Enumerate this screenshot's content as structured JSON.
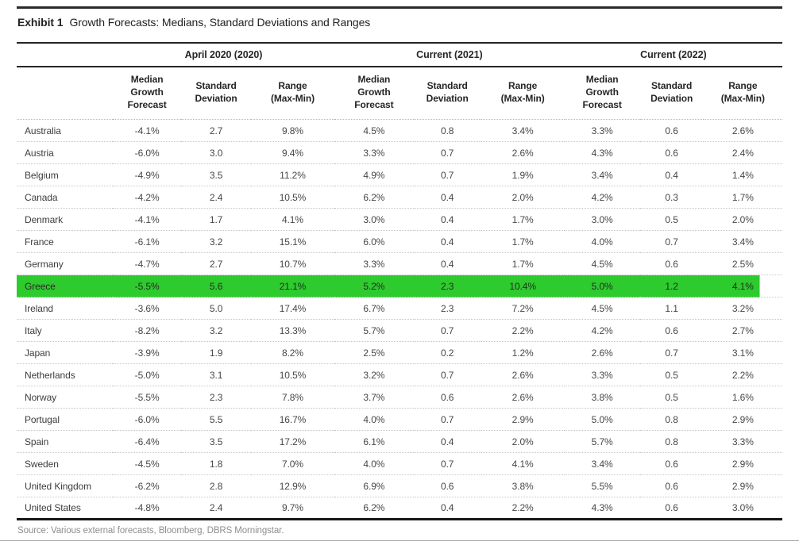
{
  "header": {
    "exhibit_label": "Exhibit 1",
    "title": "Growth Forecasts: Medians, Standard Deviations and Ranges"
  },
  "table": {
    "groups": [
      {
        "label": "April 2020 (2020)"
      },
      {
        "label": "Current (2021)"
      },
      {
        "label": "Current (2022)"
      }
    ],
    "sub_headers": [
      {
        "lines": [
          "Median",
          "Growth",
          "Forecast"
        ]
      },
      {
        "lines": [
          "Standard",
          "Deviation"
        ]
      },
      {
        "lines": [
          "Range",
          "(Max-Min)"
        ]
      }
    ],
    "rows": [
      {
        "country": "Australia",
        "highlight": false,
        "values": [
          "-4.1%",
          "2.7",
          "9.8%",
          "4.5%",
          "0.8",
          "3.4%",
          "3.3%",
          "0.6",
          "2.6%"
        ]
      },
      {
        "country": "Austria",
        "highlight": false,
        "values": [
          "-6.0%",
          "3.0",
          "9.4%",
          "3.3%",
          "0.7",
          "2.6%",
          "4.3%",
          "0.6",
          "2.4%"
        ]
      },
      {
        "country": "Belgium",
        "highlight": false,
        "values": [
          "-4.9%",
          "3.5",
          "11.2%",
          "4.9%",
          "0.7",
          "1.9%",
          "3.4%",
          "0.4",
          "1.4%"
        ]
      },
      {
        "country": "Canada",
        "highlight": false,
        "values": [
          "-4.2%",
          "2.4",
          "10.5%",
          "6.2%",
          "0.4",
          "2.0%",
          "4.2%",
          "0.3",
          "1.7%"
        ]
      },
      {
        "country": "Denmark",
        "highlight": false,
        "values": [
          "-4.1%",
          "1.7",
          "4.1%",
          "3.0%",
          "0.4",
          "1.7%",
          "3.0%",
          "0.5",
          "2.0%"
        ]
      },
      {
        "country": "France",
        "highlight": false,
        "values": [
          "-6.1%",
          "3.2",
          "15.1%",
          "6.0%",
          "0.4",
          "1.7%",
          "4.0%",
          "0.7",
          "3.4%"
        ]
      },
      {
        "country": "Germany",
        "highlight": false,
        "values": [
          "-4.7%",
          "2.7",
          "10.7%",
          "3.3%",
          "0.4",
          "1.7%",
          "4.5%",
          "0.6",
          "2.5%"
        ]
      },
      {
        "country": "Greece",
        "highlight": true,
        "values": [
          "-5.5%",
          "5.6",
          "21.1%",
          "5.2%",
          "2.3",
          "10.4%",
          "5.0%",
          "1.2",
          "4.1%"
        ]
      },
      {
        "country": "Ireland",
        "highlight": false,
        "values": [
          "-3.6%",
          "5.0",
          "17.4%",
          "6.7%",
          "2.3",
          "7.2%",
          "4.5%",
          "1.1",
          "3.2%"
        ]
      },
      {
        "country": "Italy",
        "highlight": false,
        "values": [
          "-8.2%",
          "3.2",
          "13.3%",
          "5.7%",
          "0.7",
          "2.2%",
          "4.2%",
          "0.6",
          "2.7%"
        ]
      },
      {
        "country": "Japan",
        "highlight": false,
        "values": [
          "-3.9%",
          "1.9",
          "8.2%",
          "2.5%",
          "0.2",
          "1.2%",
          "2.6%",
          "0.7",
          "3.1%"
        ]
      },
      {
        "country": "Netherlands",
        "highlight": false,
        "values": [
          "-5.0%",
          "3.1",
          "10.5%",
          "3.2%",
          "0.7",
          "2.6%",
          "3.3%",
          "0.5",
          "2.2%"
        ]
      },
      {
        "country": "Norway",
        "highlight": false,
        "values": [
          "-5.5%",
          "2.3",
          "7.8%",
          "3.7%",
          "0.6",
          "2.6%",
          "3.8%",
          "0.5",
          "1.6%"
        ]
      },
      {
        "country": "Portugal",
        "highlight": false,
        "values": [
          "-6.0%",
          "5.5",
          "16.7%",
          "4.0%",
          "0.7",
          "2.9%",
          "5.0%",
          "0.8",
          "2.9%"
        ]
      },
      {
        "country": "Spain",
        "highlight": false,
        "values": [
          "-6.4%",
          "3.5",
          "17.2%",
          "6.1%",
          "0.4",
          "2.0%",
          "5.7%",
          "0.8",
          "3.3%"
        ]
      },
      {
        "country": "Sweden",
        "highlight": false,
        "values": [
          "-4.5%",
          "1.8",
          "7.0%",
          "4.0%",
          "0.7",
          "4.1%",
          "3.4%",
          "0.6",
          "2.9%"
        ]
      },
      {
        "country": "United Kingdom",
        "highlight": false,
        "values": [
          "-6.2%",
          "2.8",
          "12.9%",
          "6.9%",
          "0.6",
          "3.8%",
          "5.5%",
          "0.6",
          "2.9%"
        ]
      },
      {
        "country": "United States",
        "highlight": false,
        "values": [
          "-4.8%",
          "2.4",
          "9.7%",
          "6.2%",
          "0.4",
          "2.2%",
          "4.3%",
          "0.6",
          "3.0%"
        ]
      }
    ]
  },
  "footer": {
    "source": "Source: Various external forecasts, Bloomberg, DBRS Morningstar."
  },
  "colors": {
    "highlight_green": "#2dcb2d"
  }
}
